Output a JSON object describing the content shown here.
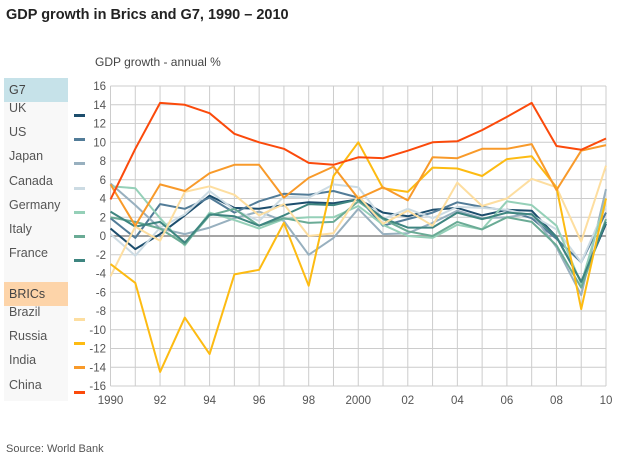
{
  "title": "GDP growth in Brics and G7, 1990 – 2010",
  "source": "Source: World Bank",
  "legend": {
    "groups": [
      {
        "label": "G7",
        "color": "#c6e2e9",
        "members": [
          "UK",
          "US",
          "Japan",
          "Canada",
          "Germany",
          "Italy",
          "France"
        ]
      },
      {
        "label": "BRICs",
        "color": "#fdd4a9",
        "members": [
          "Brazil",
          "Russia",
          "India",
          "China"
        ]
      }
    ]
  },
  "chart_data": {
    "type": "line",
    "title": "GDP growth in Brics and G7, 1990 – 2010",
    "ylabel": "GDP growth - annual %",
    "xlabel": "",
    "x": [
      1990,
      1991,
      1992,
      1993,
      1994,
      1995,
      1996,
      1997,
      1998,
      1999,
      2000,
      2001,
      2002,
      2003,
      2004,
      2005,
      2006,
      2007,
      2008,
      2009,
      2010
    ],
    "xtick_values": [
      1990,
      1992,
      1994,
      1996,
      1998,
      2000,
      2002,
      2004,
      2006,
      2008,
      2010
    ],
    "xtick_labels": [
      "1990",
      "92",
      "94",
      "96",
      "98",
      "2000",
      "02",
      "04",
      "06",
      "08",
      "10"
    ],
    "ytick_labels": [
      "16",
      "14",
      "12",
      "10",
      "8",
      "6",
      "4",
      "2",
      "0",
      "-2",
      "-4",
      "-6",
      "-8",
      "-10",
      "-12",
      "-14",
      "-16"
    ],
    "ylim": [
      -16,
      16
    ],
    "xlim": [
      1990,
      2010
    ],
    "grid": true,
    "legend_position": "left",
    "series": [
      {
        "name": "UK",
        "color": "#1d4e6d",
        "values": [
          0.8,
          -1.4,
          0.2,
          2.2,
          4.3,
          3.0,
          2.9,
          3.3,
          3.6,
          3.5,
          3.9,
          2.5,
          2.1,
          2.8,
          3.0,
          2.2,
          2.8,
          2.7,
          -0.1,
          -4.9,
          1.3
        ]
      },
      {
        "name": "US",
        "color": "#527c98",
        "values": [
          1.9,
          -0.2,
          3.4,
          2.9,
          4.1,
          2.5,
          3.7,
          4.5,
          4.4,
          4.8,
          4.1,
          1.1,
          1.8,
          2.5,
          3.6,
          3.1,
          2.7,
          1.9,
          -0.3,
          -2.8,
          2.5
        ]
      },
      {
        "name": "Japan",
        "color": "#98b0bf",
        "values": [
          5.6,
          3.3,
          0.8,
          0.2,
          0.9,
          1.9,
          2.6,
          1.6,
          -2.0,
          -0.2,
          2.9,
          0.2,
          0.3,
          1.4,
          2.7,
          1.9,
          2.0,
          2.4,
          -1.2,
          -6.3,
          5.0
        ]
      },
      {
        "name": "Canada",
        "color": "#ccdbe3",
        "values": [
          0.2,
          -2.1,
          0.9,
          2.3,
          4.8,
          2.8,
          1.6,
          4.2,
          4.1,
          5.5,
          5.2,
          1.8,
          2.9,
          1.9,
          3.1,
          3.0,
          2.8,
          2.2,
          0.7,
          -2.8,
          3.2
        ]
      },
      {
        "name": "Germany",
        "color": "#95d0b8",
        "values": [
          5.3,
          5.1,
          1.9,
          -1.0,
          2.5,
          1.7,
          0.8,
          1.8,
          2.0,
          2.0,
          3.2,
          1.2,
          0.0,
          -0.2,
          1.2,
          0.7,
          3.7,
          3.3,
          1.1,
          -5.1,
          4.0
        ]
      },
      {
        "name": "Italy",
        "color": "#6aab95",
        "values": [
          2.0,
          1.5,
          0.8,
          -0.9,
          2.2,
          2.9,
          1.1,
          1.9,
          1.4,
          1.5,
          3.7,
          1.8,
          0.5,
          0.0,
          1.5,
          0.7,
          2.0,
          1.5,
          -1.0,
          -5.5,
          1.8
        ]
      },
      {
        "name": "France",
        "color": "#3e8580",
        "values": [
          2.6,
          1.0,
          1.5,
          -0.7,
          2.3,
          2.1,
          1.1,
          2.2,
          3.4,
          3.3,
          3.9,
          1.9,
          0.9,
          0.9,
          2.5,
          1.8,
          2.5,
          2.3,
          -0.1,
          -4.9,
          1.5
        ]
      },
      {
        "name": "Brazil",
        "color": "#fddea0",
        "values": [
          -4.3,
          1.0,
          -0.5,
          4.7,
          5.3,
          4.4,
          2.2,
          3.4,
          0.0,
          0.3,
          4.3,
          1.3,
          2.7,
          1.1,
          5.7,
          3.2,
          4.0,
          6.1,
          5.2,
          -0.6,
          7.5
        ]
      },
      {
        "name": "Russia",
        "color": "#fdbb12",
        "values": [
          -3.0,
          -5.0,
          -14.5,
          -8.7,
          -12.6,
          -4.1,
          -3.6,
          1.4,
          -5.3,
          6.4,
          10.0,
          5.1,
          4.7,
          7.3,
          7.2,
          6.4,
          8.2,
          8.5,
          5.2,
          -7.8,
          4.0
        ]
      },
      {
        "name": "India",
        "color": "#f89a2a",
        "values": [
          5.5,
          1.1,
          5.5,
          4.8,
          6.7,
          7.6,
          7.6,
          4.1,
          6.2,
          7.4,
          4.0,
          5.2,
          3.8,
          8.4,
          8.3,
          9.3,
          9.3,
          9.8,
          4.9,
          9.1,
          9.7
        ]
      },
      {
        "name": "China",
        "color": "#fb4a0b",
        "values": [
          3.9,
          9.3,
          14.2,
          14.0,
          13.1,
          10.9,
          10.0,
          9.3,
          7.8,
          7.6,
          8.4,
          8.3,
          9.1,
          10.0,
          10.1,
          11.3,
          12.7,
          14.2,
          9.6,
          9.2,
          10.4
        ]
      }
    ]
  }
}
